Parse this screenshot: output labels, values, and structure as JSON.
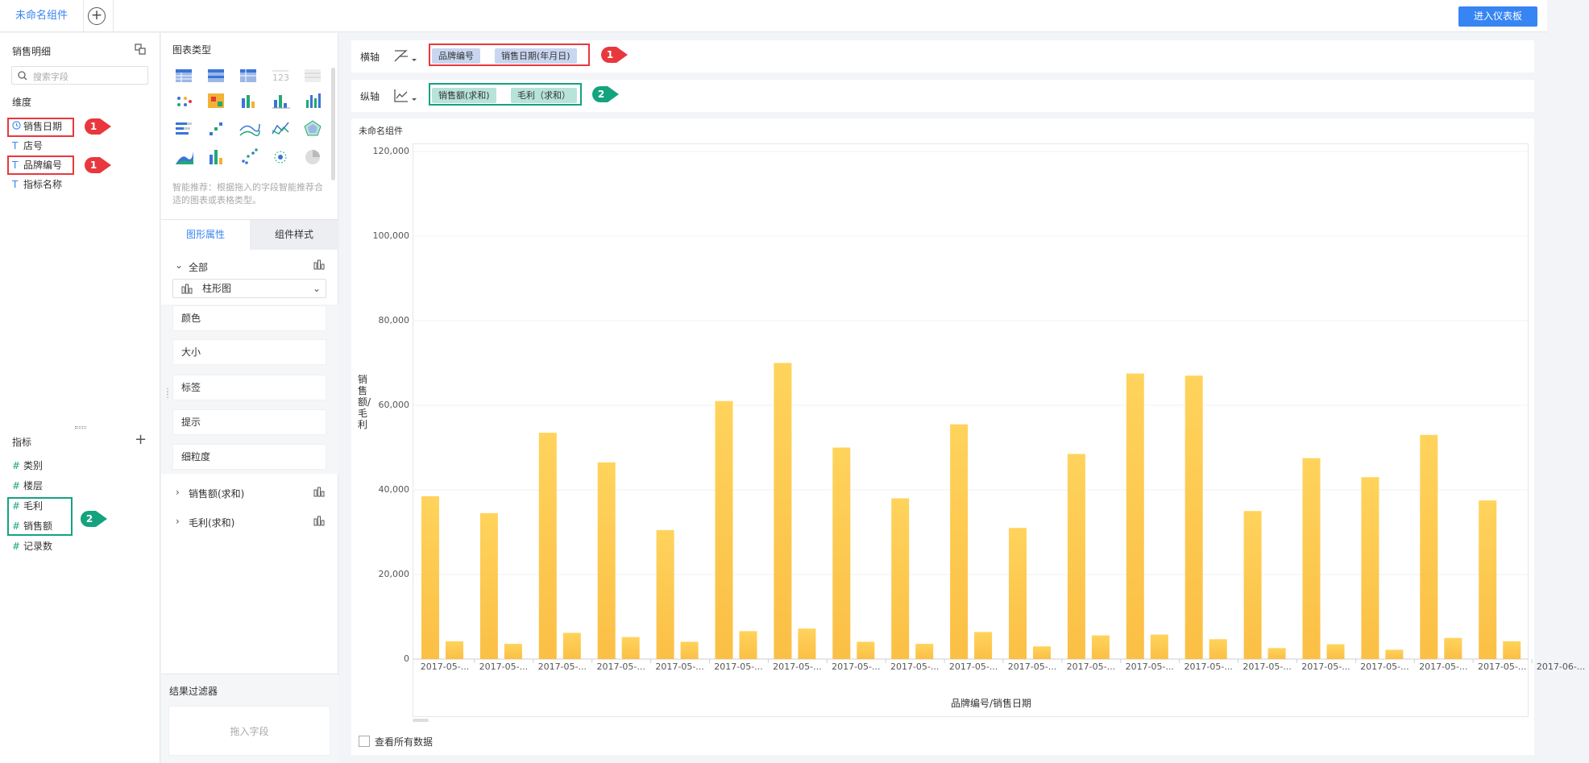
{
  "topbar": {
    "tab_label": "未命名组件",
    "add_symbol": "+",
    "dashboard_button": "进入仪表板"
  },
  "dataset": {
    "title": "销售明细",
    "search_placeholder": "搜索字段"
  },
  "dimensions": {
    "title": "维度",
    "items": [
      {
        "icon": "clock-icon",
        "label": "销售日期"
      },
      {
        "icon": "text-icon",
        "label": "店号"
      },
      {
        "icon": "text-icon",
        "label": "品牌编号"
      },
      {
        "icon": "text-icon",
        "label": "指标名称"
      }
    ]
  },
  "measures": {
    "title": "指标",
    "add_symbol": "+",
    "items": [
      {
        "icon": "hash-icon",
        "label": "类别"
      },
      {
        "icon": "hash-icon",
        "label": "楼层"
      },
      {
        "icon": "hash-icon",
        "label": "毛利"
      },
      {
        "icon": "hash-icon",
        "label": "销售额"
      },
      {
        "icon": "hash-icon",
        "label": "记录数"
      }
    ]
  },
  "annotations": {
    "badge_1": "1",
    "badge_2": "2"
  },
  "chart_types": {
    "title": "图表类型",
    "hint": "智能推荐：根据拖入的字段智能推荐合适的图表或表格类型。"
  },
  "properties": {
    "tab_shape": "图形属性",
    "tab_style": "组件样式",
    "all_label": "全部",
    "chart_type_value": "柱形图",
    "items": [
      "颜色",
      "大小",
      "标签",
      "提示",
      "细粒度"
    ],
    "series": [
      "销售额(求和)",
      "毛利(求和)"
    ]
  },
  "filter": {
    "title": "结果过滤器",
    "placeholder": "拖入字段"
  },
  "x_axis": {
    "label": "横轴",
    "fields": [
      "品牌编号",
      "销售日期(年月日)"
    ]
  },
  "y_axis": {
    "label": "纵轴",
    "fields": [
      "销售额(求和)",
      "毛利（求和）"
    ]
  },
  "chart_panel": {
    "title": "未命名组件",
    "show_all_label": "查看所有数据"
  },
  "colors": {
    "bar_top": "#ffd35c",
    "bar_bottom": "#fbbf45",
    "accent": "#3685f2",
    "annotation_red": "#e8383d",
    "annotation_green": "#14a37f"
  },
  "chart_data": {
    "type": "bar",
    "xlabel": "品牌编号/销售日期",
    "ylabel": "销售额/毛利",
    "ylim": [
      0,
      120000
    ],
    "yticks": [
      "120,000",
      "100,000",
      "80,000",
      "60,000",
      "40,000",
      "20,000",
      "0"
    ],
    "categories": [
      "2017-05-...",
      "2017-05-...",
      "2017-05-...",
      "2017-05-...",
      "2017-05-...",
      "2017-05-...",
      "2017-05-...",
      "2017-05-...",
      "2017-05-...",
      "2017-05-...",
      "2017-05-...",
      "2017-05-...",
      "2017-05-...",
      "2017-05-...",
      "2017-05-...",
      "2017-05-...",
      "2017-05-...",
      "2017-05-...",
      "2017-05-...",
      "2017-06-..."
    ],
    "series": [
      {
        "name": "销售额(求和)",
        "values": [
          38500,
          34500,
          53500,
          46500,
          30500,
          61000,
          70000,
          50000,
          38000,
          55500,
          31000,
          48500,
          67500,
          67000,
          35000,
          47500,
          43000,
          53000,
          37500,
          0
        ]
      },
      {
        "name": "毛利（求和）",
        "values": [
          4200,
          3600,
          6200,
          5200,
          4100,
          6600,
          7200,
          4100,
          3600,
          6400,
          3000,
          5600,
          5800,
          4700,
          2600,
          3500,
          2200,
          5000,
          4200,
          0
        ]
      }
    ]
  }
}
